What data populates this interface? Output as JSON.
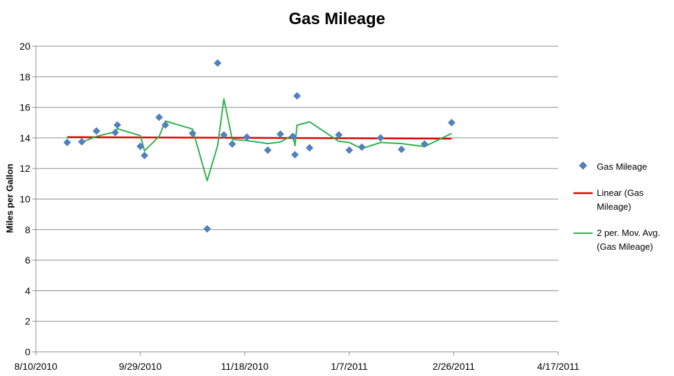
{
  "chart_data": {
    "type": "scatter",
    "title": "Gas Mileage",
    "xlabel": "",
    "ylabel": "Miles per Gallon",
    "xlim": [
      "2010-08-10",
      "2011-04-17"
    ],
    "ylim": [
      0,
      20
    ],
    "x_ticks": [
      "8/10/2010",
      "9/29/2010",
      "11/18/2010",
      "1/7/2011",
      "2/26/2011",
      "4/17/2011"
    ],
    "y_ticks": [
      0,
      2,
      4,
      6,
      8,
      10,
      12,
      14,
      16,
      18,
      20
    ],
    "grid": true,
    "legend_position": "right",
    "series": [
      {
        "name": "Gas Mileage",
        "kind": "scatter",
        "marker": "diamond",
        "color": "#4F81BD",
        "points": [
          {
            "x": "2010-08-25",
            "y": 13.7
          },
          {
            "x": "2010-09-01",
            "y": 13.75
          },
          {
            "x": "2010-09-08",
            "y": 14.45
          },
          {
            "x": "2010-09-17",
            "y": 14.35
          },
          {
            "x": "2010-09-18",
            "y": 14.85
          },
          {
            "x": "2010-09-29",
            "y": 13.45
          },
          {
            "x": "2010-10-01",
            "y": 12.85
          },
          {
            "x": "2010-10-08",
            "y": 15.35
          },
          {
            "x": "2010-10-11",
            "y": 14.85
          },
          {
            "x": "2010-10-24",
            "y": 14.3
          },
          {
            "x": "2010-10-31",
            "y": 8.05
          },
          {
            "x": "2010-11-05",
            "y": 18.9
          },
          {
            "x": "2010-11-08",
            "y": 14.2
          },
          {
            "x": "2010-11-12",
            "y": 13.6
          },
          {
            "x": "2010-11-19",
            "y": 14.05
          },
          {
            "x": "2010-11-29",
            "y": 13.2
          },
          {
            "x": "2010-12-05",
            "y": 14.25
          },
          {
            "x": "2010-12-11",
            "y": 14.1
          },
          {
            "x": "2010-12-12",
            "y": 12.9
          },
          {
            "x": "2010-12-13",
            "y": 16.75
          },
          {
            "x": "2010-12-19",
            "y": 13.35
          },
          {
            "x": "2011-01-02",
            "y": 14.2
          },
          {
            "x": "2011-01-07",
            "y": 13.2
          },
          {
            "x": "2011-01-13",
            "y": 13.4
          },
          {
            "x": "2011-01-22",
            "y": 14.0
          },
          {
            "x": "2011-02-01",
            "y": 13.25
          },
          {
            "x": "2011-02-12",
            "y": 13.6
          },
          {
            "x": "2011-02-25",
            "y": 15.0
          }
        ]
      },
      {
        "name": "Linear (Gas Mileage)",
        "kind": "line",
        "color": "#E00000",
        "points": [
          {
            "x": "2010-08-25",
            "y": 14.05
          },
          {
            "x": "2011-02-25",
            "y": 13.95
          }
        ]
      },
      {
        "name": "2 per. Mov. Avg. (Gas Mileage)",
        "kind": "line",
        "color": "#2DB04B",
        "points": [
          {
            "x": "2010-09-01",
            "y": 13.72
          },
          {
            "x": "2010-09-08",
            "y": 14.1
          },
          {
            "x": "2010-09-17",
            "y": 14.4
          },
          {
            "x": "2010-09-18",
            "y": 14.6
          },
          {
            "x": "2010-09-29",
            "y": 14.15
          },
          {
            "x": "2010-10-01",
            "y": 13.15
          },
          {
            "x": "2010-10-08",
            "y": 14.1
          },
          {
            "x": "2010-10-11",
            "y": 15.1
          },
          {
            "x": "2010-10-24",
            "y": 14.58
          },
          {
            "x": "2010-10-31",
            "y": 11.2
          },
          {
            "x": "2010-11-05",
            "y": 13.5
          },
          {
            "x": "2010-11-08",
            "y": 16.55
          },
          {
            "x": "2010-11-12",
            "y": 13.9
          },
          {
            "x": "2010-11-19",
            "y": 13.83
          },
          {
            "x": "2010-11-29",
            "y": 13.63
          },
          {
            "x": "2010-12-05",
            "y": 13.73
          },
          {
            "x": "2010-12-11",
            "y": 14.18
          },
          {
            "x": "2010-12-12",
            "y": 13.5
          },
          {
            "x": "2010-12-13",
            "y": 14.83
          },
          {
            "x": "2010-12-19",
            "y": 15.05
          },
          {
            "x": "2011-01-02",
            "y": 13.78
          },
          {
            "x": "2011-01-07",
            "y": 13.7
          },
          {
            "x": "2011-01-13",
            "y": 13.3
          },
          {
            "x": "2011-01-22",
            "y": 13.7
          },
          {
            "x": "2011-02-01",
            "y": 13.63
          },
          {
            "x": "2011-02-12",
            "y": 13.43
          },
          {
            "x": "2011-02-25",
            "y": 14.3
          }
        ]
      }
    ]
  }
}
